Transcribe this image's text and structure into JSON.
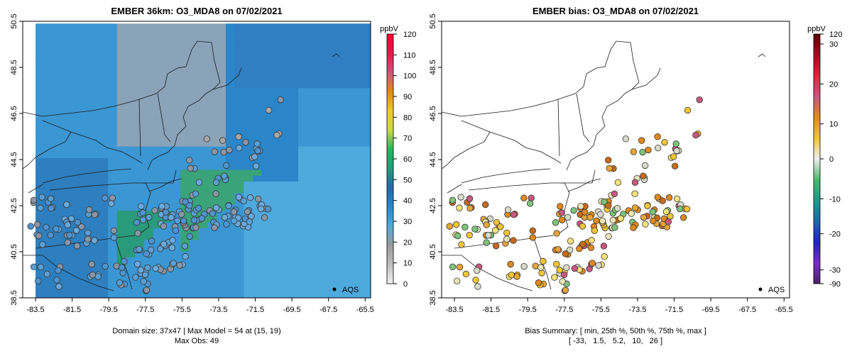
{
  "chart_data": [
    {
      "type": "heatmap",
      "title": "EMBER 36km: O3_MDA8 on 07/02/2021",
      "colorbar": {
        "unit": "ppbV",
        "ticks": [
          0,
          10,
          20,
          30,
          40,
          50,
          60,
          70,
          80,
          90,
          100,
          110,
          120
        ],
        "stops": [
          "#f2f2f2",
          "#bdbdbd",
          "#9a9a9a",
          "#4ea9dc",
          "#2a86c9",
          "#1f69ab",
          "#2a9a7c",
          "#2ab55b",
          "#c9d94a",
          "#f0c535",
          "#e0891a",
          "#c7587f",
          "#e5184a",
          "#ff0033"
        ]
      },
      "xlim": [
        -84.2,
        -65.2
      ],
      "ylim": [
        38.5,
        50.5
      ],
      "xticks": [
        -83.5,
        -81.5,
        -79.5,
        -77.5,
        -75.5,
        -73.5,
        -71.5,
        -69.5,
        -67.5,
        -65.5
      ],
      "yticks": [
        38.5,
        40.5,
        42.5,
        44.5,
        46.5,
        48.5,
        50.5
      ],
      "legend": "AQS",
      "footer_line1": "Domain size: 37x47 | Max Model = 54 at (15, 19)",
      "footer_line2": "Max Obs: 49"
    },
    {
      "type": "scatter",
      "title": "EMBER bias: O3_MDA8 on 07/02/2021",
      "colorbar": {
        "unit": "ppbV",
        "tick_labels": [
          "120",
          "30",
          "20",
          "10",
          "0",
          "-10",
          "-20",
          "-30",
          "-90"
        ],
        "stops": [
          "#5c0000",
          "#b00020",
          "#e8203a",
          "#c7587f",
          "#e0891a",
          "#f0c535",
          "#efefef",
          "#4cba6a",
          "#1f9a8c",
          "#1f69ab",
          "#2020d0",
          "#7a30c0",
          "#4b2070"
        ]
      },
      "xlim": [
        -84.2,
        -65.2
      ],
      "ylim": [
        38.5,
        50.5
      ],
      "xticks": [
        -83.5,
        -81.5,
        -79.5,
        -77.5,
        -75.5,
        -73.5,
        -71.5,
        -69.5,
        -67.5,
        -65.5
      ],
      "yticks": [
        38.5,
        40.5,
        42.5,
        44.5,
        46.5,
        48.5,
        50.5
      ],
      "legend": "AQS",
      "footer_line1": "Bias Summary: [ min, 25th %, 50th %, 75th %, max ]",
      "footer_line2": "[ -33,   1.5,   5.2,   10,   26 ]",
      "bias_summary": {
        "min": -33,
        "p25": 1.5,
        "p50": 5.2,
        "p75": 10,
        "max": 26
      }
    }
  ]
}
